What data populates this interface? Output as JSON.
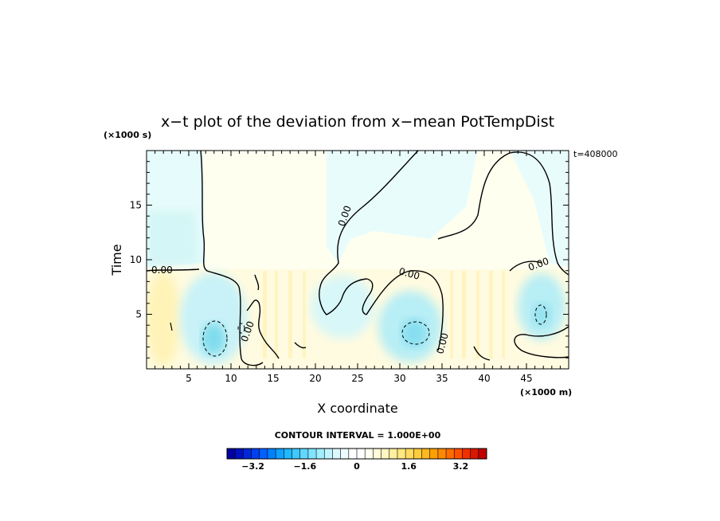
{
  "chart_data": {
    "type": "heatmap",
    "title": "x−t plot of the deviation from x−mean PotTempDist",
    "xlabel": "X coordinate",
    "ylabel": "Time",
    "x_unit": "(×1000 m)",
    "y_unit": "(×1000 s)",
    "time_stamp": "t=408000",
    "xlim": [
      0,
      50
    ],
    "ylim": [
      0,
      20
    ],
    "x_ticks": [
      "5",
      "10",
      "15",
      "20",
      "25",
      "30",
      "35",
      "40",
      "45"
    ],
    "y_ticks": [
      "5",
      "10",
      "15"
    ],
    "contour_interval_text": "CONTOUR INTERVAL = 1.000E+00",
    "contour_labels": [
      "0.00",
      "0.00",
      "0.00",
      "0.00",
      "0.00",
      "0.00"
    ],
    "colorbar": {
      "range": [
        -4,
        4
      ],
      "ticks": [
        "−3.2",
        "−1.6",
        "0",
        "1.6",
        "3.2"
      ],
      "tick_values": [
        -3.2,
        -1.6,
        0,
        1.6,
        3.2
      ]
    },
    "features": [
      {
        "x": 8,
        "t": 2.8,
        "value": -1.2
      },
      {
        "x": 31.5,
        "t": 3.3,
        "value": -1.0
      },
      {
        "x": 46.5,
        "t": 5.0,
        "value": -0.9
      },
      {
        "x": 3,
        "t": 3.5,
        "value": 0.6
      },
      {
        "x": 20,
        "t": 3,
        "value": 0.3
      },
      {
        "x": 38,
        "t": 4,
        "value": 0.3
      },
      {
        "x": 10,
        "t": 15,
        "value": -0.3
      },
      {
        "x": 40,
        "t": 15,
        "value": -0.15
      }
    ]
  }
}
